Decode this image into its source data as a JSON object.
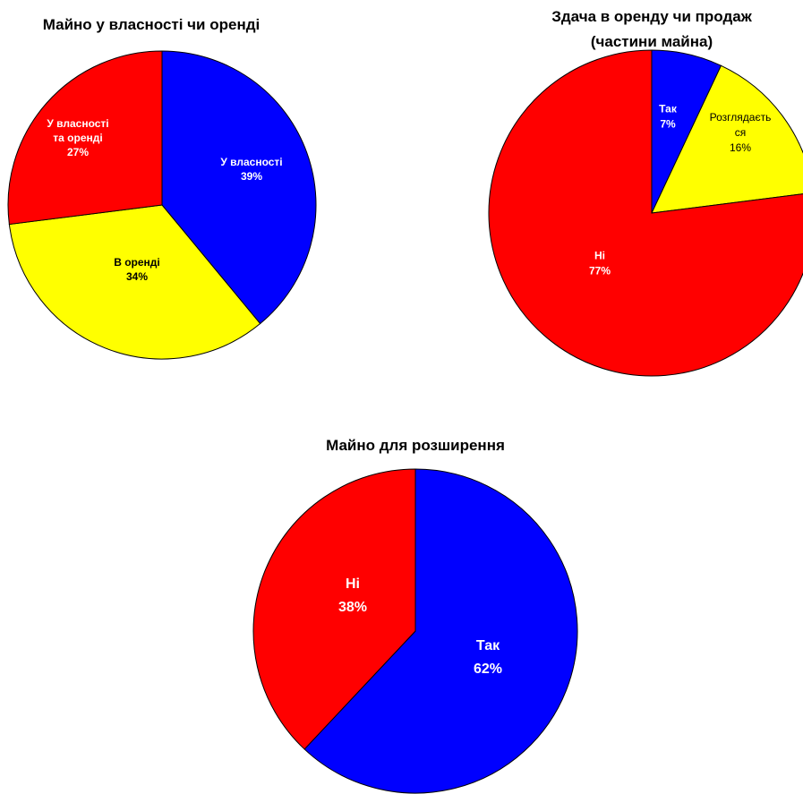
{
  "chart_data": [
    {
      "type": "pie",
      "title": "Майно у власності чи оренді",
      "slices": [
        {
          "label": [
            "У власності"
          ],
          "value": 39,
          "pct": "39%",
          "color": "#0000ff",
          "text_color": "#ffffff"
        },
        {
          "label": [
            "В оренді"
          ],
          "value": 34,
          "pct": "34%",
          "color": "#ffff00",
          "text_color": "#000000"
        },
        {
          "label": [
            "У власності",
            "та оренді"
          ],
          "value": 27,
          "pct": "27%",
          "color": "#ff0000",
          "text_color": "#ffffff"
        }
      ]
    },
    {
      "type": "pie",
      "title": "Здача в оренду чи продаж (частини майна)",
      "title_lines": [
        "Здача в оренду чи продаж",
        "(частини майна)"
      ],
      "slices": [
        {
          "label": [
            "Так"
          ],
          "value": 7,
          "pct": "7%",
          "color": "#0000ff",
          "text_color": "#ffffff"
        },
        {
          "label": [
            "Розглядаєть",
            "ся"
          ],
          "value": 16,
          "pct": "16%",
          "color": "#ffff00",
          "text_color": "#000000"
        },
        {
          "label": [
            "Ні"
          ],
          "value": 77,
          "pct": "77%",
          "color": "#ff0000",
          "text_color": "#ffffff"
        }
      ]
    },
    {
      "type": "pie",
      "title": "Майно для розширення",
      "slices": [
        {
          "label": [
            "Так"
          ],
          "value": 62,
          "pct": "62%",
          "color": "#0000ff",
          "text_color": "#ffffff"
        },
        {
          "label": [
            "Ні"
          ],
          "value": 38,
          "pct": "38%",
          "color": "#ff0000",
          "text_color": "#ffffff"
        }
      ]
    }
  ]
}
